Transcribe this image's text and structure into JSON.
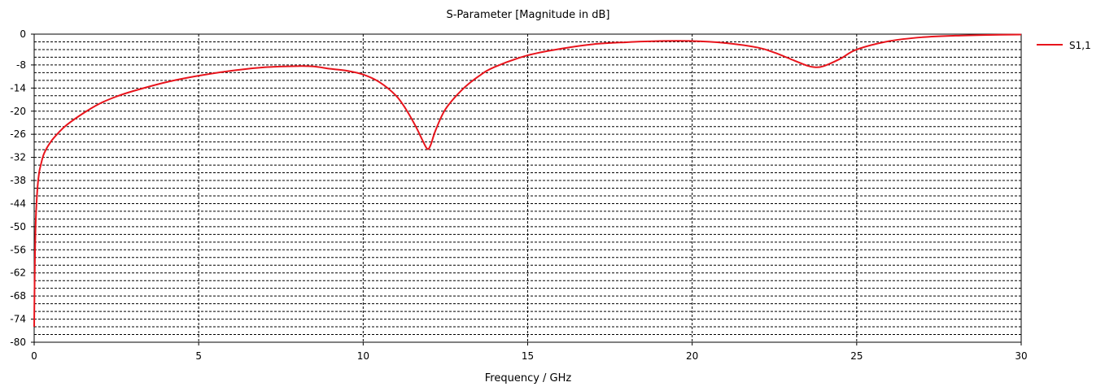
{
  "chart_data": {
    "type": "line",
    "title": "S-Parameter [Magnitude in dB]",
    "xlabel": "Frequency / GHz",
    "ylabel": "",
    "xlim": [
      0,
      30
    ],
    "ylim": [
      -80,
      0
    ],
    "x_ticks": [
      0,
      5,
      10,
      15,
      20,
      25,
      30
    ],
    "x_tick_labels": [
      "0",
      "5",
      "10",
      "15",
      "20",
      "25",
      "30"
    ],
    "x_minor_step": 1,
    "y_ticks": [
      0,
      -8,
      -14,
      -20,
      -26,
      -32,
      -38,
      -44,
      -50,
      -56,
      -62,
      -68,
      -74,
      -80
    ],
    "y_tick_labels": [
      "0",
      "-8",
      "-14",
      "-20",
      "-26",
      "-32",
      "-38",
      "-44",
      "-50",
      "-56",
      "-62",
      "-68",
      "-74",
      "-80"
    ],
    "y_minor_step": 2,
    "grid": true,
    "legend_position": "right-top",
    "series": [
      {
        "name": "S1,1",
        "color": "#e8141c",
        "x": [
          0,
          0.02,
          0.05,
          0.1,
          0.15,
          0.2,
          0.3,
          0.5,
          0.75,
          1,
          1.5,
          2,
          2.5,
          3,
          4,
          5,
          6,
          7,
          8,
          8.5,
          9,
          9.5,
          10,
          10.5,
          11,
          11.3,
          11.6,
          11.8,
          11.95,
          12.05,
          12.2,
          12.5,
          13,
          13.5,
          14,
          15,
          16,
          17,
          18,
          19,
          20,
          21,
          22,
          22.5,
          23,
          23.5,
          23.75,
          24,
          24.5,
          25,
          26,
          27,
          28,
          29,
          30
        ],
        "y": [
          -76,
          -60,
          -48,
          -40,
          -36,
          -34,
          -31,
          -28,
          -25.5,
          -23.5,
          -20.5,
          -18,
          -16.2,
          -14.8,
          -12.5,
          -10.8,
          -9.5,
          -8.6,
          -8.3,
          -8.4,
          -9,
          -9.5,
          -10.5,
          -12.5,
          -16,
          -19.5,
          -24,
          -27.5,
          -29.8,
          -28.8,
          -25,
          -19.5,
          -14.5,
          -11,
          -8.5,
          -5.5,
          -3.8,
          -2.6,
          -2.1,
          -1.8,
          -1.8,
          -2.3,
          -3.5,
          -4.8,
          -6.5,
          -8.2,
          -8.6,
          -8.3,
          -6.4,
          -4,
          -1.8,
          -0.8,
          -0.4,
          -0.2,
          -0.1
        ]
      }
    ]
  }
}
